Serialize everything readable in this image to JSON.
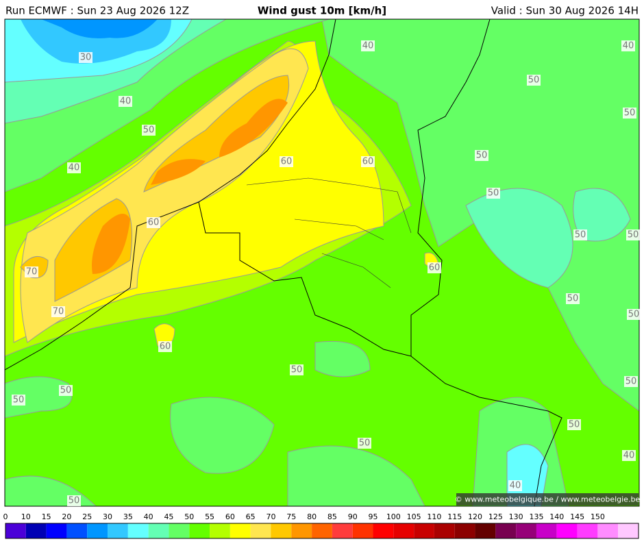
{
  "header": {
    "run": "Run ECMWF : Sun 23 Aug 2026 12Z",
    "title": "Wind gust 10m [km/h]",
    "valid": "Valid : Sun 30 Aug 2026 14H"
  },
  "contour_labels": [
    30,
    40,
    40,
    40,
    50,
    50,
    50,
    40,
    60,
    60,
    50,
    50,
    60,
    50,
    50,
    70,
    60,
    50,
    70,
    50,
    60,
    50,
    50,
    50,
    50,
    50,
    50,
    40,
    40,
    50
  ],
  "copyright": "© www.meteobelgique.be / www.meteobelgie.be",
  "colorbar": {
    "ticks": [
      0,
      10,
      15,
      20,
      25,
      30,
      35,
      40,
      45,
      50,
      55,
      60,
      65,
      70,
      75,
      80,
      85,
      90,
      95,
      100,
      105,
      110,
      115,
      120,
      125,
      130,
      135,
      140,
      145,
      150
    ],
    "colors": [
      "#4b00d8",
      "#0000b4",
      "#0000ff",
      "#0050ff",
      "#0096ff",
      "#32c8ff",
      "#64ffff",
      "#64ffb4",
      "#64ff64",
      "#64ff00",
      "#b4ff00",
      "#ffff00",
      "#ffe650",
      "#ffc800",
      "#ff9600",
      "#ff6400",
      "#ff3c3c",
      "#ff3200",
      "#ff0000",
      "#e60000",
      "#c80000",
      "#aa0000",
      "#8c0000",
      "#640000",
      "#780050",
      "#960078",
      "#c800c8",
      "#ff00ff",
      "#ff3cff",
      "#ff8cff",
      "#ffc8ff"
    ]
  }
}
